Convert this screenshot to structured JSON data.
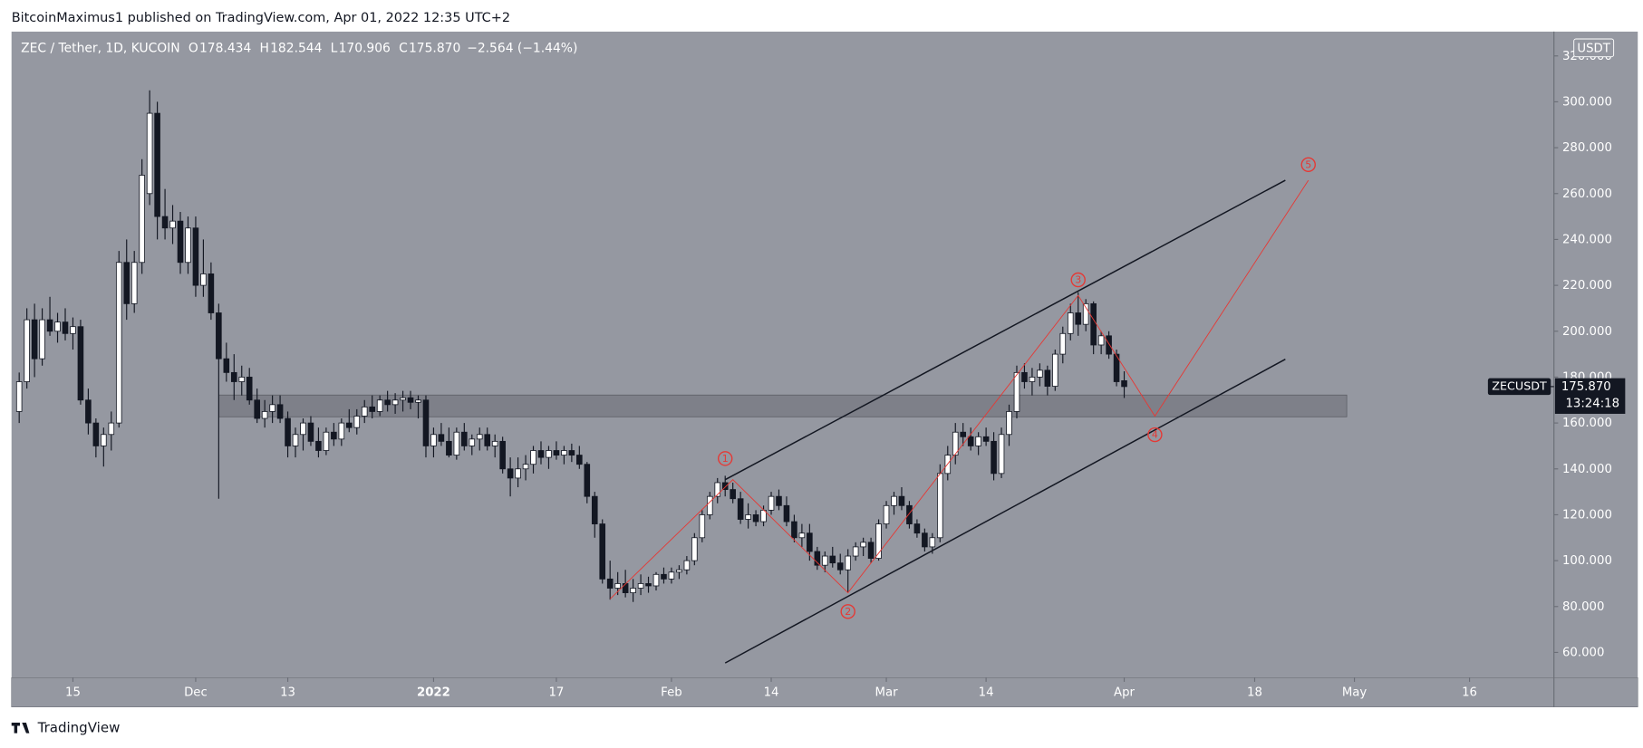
{
  "header": "BitcoinMaximus1 published on TradingView.com, Apr 01, 2022 12:35 UTC+2",
  "footer": "TradingView",
  "chart_data": {
    "type": "candlestick",
    "legend": {
      "symbol": "ZEC / Tether, 1D, KUCOIN",
      "keys": [
        "O",
        "H",
        "L",
        "C"
      ],
      "values": [
        "178.434",
        "182.544",
        "170.906",
        "175.870"
      ],
      "change": "−2.564 (−1.44%)"
    },
    "currency": "USDT",
    "price_label": {
      "symbol": "ZECUSDT",
      "price": "175.870",
      "countdown": "13:24:18",
      "value": 175.87
    },
    "xlim": [
      "2021-11-07",
      "2022-05-27"
    ],
    "ylim": [
      49,
      330.6
    ],
    "yticks": [
      {
        "value": 60,
        "label": "60.000"
      },
      {
        "value": 80,
        "label": "80.000"
      },
      {
        "value": 100,
        "label": "100.000"
      },
      {
        "value": 120,
        "label": "120.000"
      },
      {
        "value": 140,
        "label": "140.000"
      },
      {
        "value": 160,
        "label": "160.000"
      },
      {
        "value": 180,
        "label": "180.000"
      },
      {
        "value": 200,
        "label": "200.000"
      },
      {
        "value": 220,
        "label": "220.000"
      },
      {
        "value": 240,
        "label": "240.000"
      },
      {
        "value": 260,
        "label": "260.000"
      },
      {
        "value": 280,
        "label": "280.000"
      },
      {
        "value": 300,
        "label": "300.000"
      },
      {
        "value": 320,
        "label": "320.000"
      }
    ],
    "xticks": [
      {
        "value": "2021-11-15",
        "label": "15"
      },
      {
        "value": "2021-12-01",
        "label": "Dec"
      },
      {
        "value": "2021-12-13",
        "label": "13"
      },
      {
        "value": "2022-01-01",
        "label": "2022"
      },
      {
        "value": "2022-01-17",
        "label": "17"
      },
      {
        "value": "2022-02-01",
        "label": "Feb"
      },
      {
        "value": "2022-02-14",
        "label": "14"
      },
      {
        "value": "2022-03-01",
        "label": "Mar"
      },
      {
        "value": "2022-03-14",
        "label": "14"
      },
      {
        "value": "2022-04-01",
        "label": "Apr"
      },
      {
        "value": "2022-04-18",
        "label": "18"
      },
      {
        "value": "2022-05-01",
        "label": "May"
      },
      {
        "value": "2022-05-16",
        "label": "16"
      }
    ],
    "up_color": "#ffffff",
    "down_color": "#131722",
    "background": "#9598a1",
    "x": [
      "2021-11-08",
      "2021-11-09",
      "2021-11-10",
      "2021-11-11",
      "2021-11-12",
      "2021-11-13",
      "2021-11-14",
      "2021-11-15",
      "2021-11-16",
      "2021-11-17",
      "2021-11-18",
      "2021-11-19",
      "2021-11-20",
      "2021-11-21",
      "2021-11-22",
      "2021-11-23",
      "2021-11-24",
      "2021-11-25",
      "2021-11-26",
      "2021-11-27",
      "2021-11-28",
      "2021-11-29",
      "2021-11-30",
      "2021-12-01",
      "2021-12-02",
      "2021-12-03",
      "2021-12-04",
      "2021-12-05",
      "2021-12-06",
      "2021-12-07",
      "2021-12-08",
      "2021-12-09",
      "2021-12-10",
      "2021-12-11",
      "2021-12-12",
      "2021-12-13",
      "2021-12-14",
      "2021-12-15",
      "2021-12-16",
      "2021-12-17",
      "2021-12-18",
      "2021-12-19",
      "2021-12-20",
      "2021-12-21",
      "2021-12-22",
      "2021-12-23",
      "2021-12-24",
      "2021-12-25",
      "2021-12-26",
      "2021-12-27",
      "2021-12-28",
      "2021-12-29",
      "2021-12-30",
      "2021-12-31",
      "2022-01-01",
      "2022-01-02",
      "2022-01-03",
      "2022-01-04",
      "2022-01-05",
      "2022-01-06",
      "2022-01-07",
      "2022-01-08",
      "2022-01-09",
      "2022-01-10",
      "2022-01-11",
      "2022-01-12",
      "2022-01-13",
      "2022-01-14",
      "2022-01-15",
      "2022-01-16",
      "2022-01-17",
      "2022-01-18",
      "2022-01-19",
      "2022-01-20",
      "2022-01-21",
      "2022-01-22",
      "2022-01-23",
      "2022-01-24",
      "2022-01-25",
      "2022-01-26",
      "2022-01-27",
      "2022-01-28",
      "2022-01-29",
      "2022-01-30",
      "2022-01-31",
      "2022-02-01",
      "2022-02-02",
      "2022-02-03",
      "2022-02-04",
      "2022-02-05",
      "2022-02-06",
      "2022-02-07",
      "2022-02-08",
      "2022-02-09",
      "2022-02-10",
      "2022-02-11",
      "2022-02-12",
      "2022-02-13",
      "2022-02-14",
      "2022-02-15",
      "2022-02-16",
      "2022-02-17",
      "2022-02-18",
      "2022-02-19",
      "2022-02-20",
      "2022-02-21",
      "2022-02-22",
      "2022-02-23",
      "2022-02-24",
      "2022-02-25",
      "2022-02-26",
      "2022-02-27",
      "2022-02-28",
      "2022-03-01",
      "2022-03-02",
      "2022-03-03",
      "2022-03-04",
      "2022-03-05",
      "2022-03-06",
      "2022-03-07",
      "2022-03-08",
      "2022-03-09",
      "2022-03-10",
      "2022-03-11",
      "2022-03-12",
      "2022-03-13",
      "2022-03-14",
      "2022-03-15",
      "2022-03-16",
      "2022-03-17",
      "2022-03-18",
      "2022-03-19",
      "2022-03-20",
      "2022-03-21",
      "2022-03-22",
      "2022-03-23",
      "2022-03-24",
      "2022-03-25",
      "2022-03-26",
      "2022-03-27",
      "2022-03-28",
      "2022-03-29",
      "2022-03-30",
      "2022-03-31",
      "2022-04-01"
    ],
    "open": [
      165,
      178,
      205,
      188,
      205,
      200,
      204,
      199,
      202,
      170,
      160,
      150,
      155,
      160,
      230,
      212,
      230,
      260,
      295,
      250,
      245,
      248,
      230,
      245,
      220,
      225,
      208,
      188,
      182,
      178,
      180,
      170,
      162,
      165,
      168,
      162,
      150,
      155,
      160,
      152,
      148,
      156,
      153,
      160,
      158,
      163,
      167,
      165,
      170,
      168,
      170,
      171,
      169,
      170,
      150,
      155,
      152,
      146,
      156,
      150,
      153,
      155,
      150,
      152,
      140,
      136,
      140,
      142,
      148,
      145,
      148,
      146,
      148,
      146,
      142,
      128,
      116,
      92,
      88,
      90,
      86,
      88,
      90,
      89,
      94,
      92,
      95,
      96,
      100,
      110,
      120,
      128,
      134,
      131,
      127,
      118,
      120,
      117,
      122,
      128,
      124,
      117,
      110,
      112,
      104,
      98,
      102,
      99,
      96,
      102,
      106,
      108,
      101,
      116,
      124,
      128,
      124,
      116,
      112,
      106,
      110,
      138,
      146,
      156,
      154,
      150,
      154,
      152,
      138,
      155,
      165,
      182,
      178,
      180,
      183,
      176,
      190,
      199,
      208,
      203,
      212,
      194,
      198,
      190,
      178.434
    ],
    "high": [
      182,
      210,
      212,
      210,
      215,
      208,
      210,
      206,
      205,
      175,
      162,
      158,
      165,
      235,
      240,
      235,
      275,
      305,
      300,
      262,
      255,
      252,
      250,
      250,
      240,
      230,
      212,
      195,
      190,
      185,
      184,
      175,
      170,
      172,
      172,
      165,
      158,
      162,
      163,
      158,
      158,
      160,
      162,
      166,
      166,
      170,
      172,
      172,
      174,
      173,
      174,
      174,
      172,
      172,
      158,
      160,
      158,
      158,
      160,
      155,
      158,
      158,
      155,
      154,
      145,
      145,
      146,
      150,
      152,
      150,
      152,
      150,
      151,
      150,
      143,
      130,
      118,
      100,
      95,
      96,
      92,
      94,
      93,
      95,
      97,
      97,
      98,
      102,
      112,
      122,
      130,
      136,
      137,
      134,
      130,
      125,
      122,
      124,
      130,
      131,
      128,
      120,
      116,
      116,
      106,
      104,
      106,
      103,
      105,
      108,
      110,
      110,
      118,
      126,
      130,
      132,
      126,
      118,
      114,
      112,
      142,
      150,
      160,
      160,
      158,
      156,
      158,
      156,
      158,
      168,
      185,
      186,
      184,
      186,
      185,
      192,
      202,
      212,
      217,
      214,
      213,
      200,
      200,
      192,
      182.544
    ],
    "low": [
      160,
      175,
      180,
      185,
      198,
      195,
      196,
      192,
      168,
      155,
      145,
      141,
      148,
      158,
      205,
      208,
      225,
      255,
      240,
      240,
      238,
      225,
      225,
      215,
      215,
      205,
      127,
      178,
      170,
      172,
      168,
      160,
      158,
      160,
      160,
      145,
      145,
      148,
      150,
      145,
      146,
      150,
      150,
      156,
      155,
      160,
      162,
      163,
      165,
      164,
      165,
      166,
      162,
      145,
      145,
      150,
      145,
      144,
      148,
      146,
      148,
      148,
      145,
      138,
      128,
      132,
      135,
      138,
      142,
      140,
      144,
      142,
      143,
      140,
      125,
      110,
      90,
      83,
      85,
      84,
      82,
      85,
      86,
      87,
      90,
      90,
      92,
      94,
      98,
      108,
      118,
      125,
      128,
      125,
      116,
      114,
      115,
      115,
      120,
      122,
      115,
      108,
      106,
      100,
      96,
      95,
      97,
      94,
      86,
      100,
      102,
      99,
      100,
      114,
      120,
      122,
      114,
      110,
      104,
      103,
      108,
      135,
      142,
      150,
      148,
      146,
      150,
      135,
      136,
      150,
      162,
      175,
      172,
      176,
      172,
      174,
      186,
      196,
      198,
      200,
      190,
      190,
      188,
      176,
      170.906
    ],
    "close": [
      178,
      205,
      188,
      205,
      200,
      204,
      199,
      202,
      170,
      160,
      150,
      155,
      160,
      230,
      212,
      230,
      268,
      295,
      250,
      245,
      248,
      230,
      245,
      220,
      225,
      208,
      188,
      182,
      178,
      180,
      170,
      162,
      165,
      168,
      162,
      150,
      155,
      160,
      152,
      148,
      156,
      153,
      160,
      158,
      163,
      167,
      165,
      170,
      168,
      170,
      171,
      169,
      170,
      150,
      155,
      152,
      146,
      156,
      150,
      153,
      155,
      150,
      152,
      140,
      136,
      140,
      142,
      148,
      145,
      148,
      146,
      148,
      146,
      142,
      128,
      116,
      92,
      88,
      90,
      86,
      88,
      90,
      89,
      94,
      92,
      95,
      96,
      100,
      110,
      120,
      128,
      134,
      131,
      127,
      118,
      120,
      117,
      122,
      128,
      124,
      117,
      110,
      112,
      104,
      98,
      102,
      99,
      96,
      102,
      106,
      108,
      101,
      116,
      124,
      128,
      124,
      116,
      112,
      106,
      110,
      138,
      146,
      156,
      154,
      150,
      154,
      152,
      138,
      155,
      165,
      182,
      178,
      180,
      183,
      176,
      190,
      199,
      208,
      203,
      212,
      194,
      198,
      190,
      178,
      175.87
    ],
    "zone": {
      "x": [
        "2021-12-04",
        "2022-04-30"
      ],
      "y": [
        162.7,
        172.2
      ],
      "color": "#6b6e77"
    },
    "channel": [
      {
        "x": [
          "2022-02-08",
          "2022-04-22"
        ],
        "y": [
          135.3,
          265.8
        ]
      },
      {
        "x": [
          "2022-02-08",
          "2022-04-22"
        ],
        "y": [
          55.4,
          187.8
        ]
      }
    ],
    "channel_color": "#131722",
    "zigzag": {
      "x": [
        "2022-01-24",
        "2022-02-09",
        "2022-02-24",
        "2022-03-26",
        "2022-04-05",
        "2022-04-25"
      ],
      "y": [
        83.3,
        135.3,
        86,
        215.6,
        163,
        265.8
      ],
      "color": "#e53935"
    },
    "waves": [
      {
        "label": "1",
        "x": "2022-02-08",
        "y": 144.5
      },
      {
        "label": "2",
        "x": "2022-02-24",
        "y": 77.8
      },
      {
        "label": "3",
        "x": "2022-03-26",
        "y": 222.4
      },
      {
        "label": "4",
        "x": "2022-04-05",
        "y": 154.9
      },
      {
        "label": "5",
        "x": "2022-04-25",
        "y": 272.6
      }
    ]
  }
}
